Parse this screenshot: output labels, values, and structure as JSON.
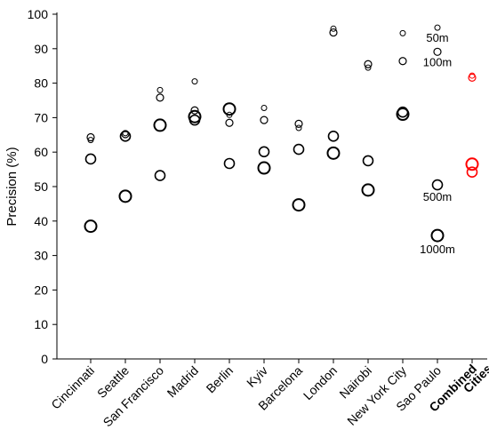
{
  "chart_data": {
    "type": "scatter",
    "title": "",
    "xlabel": "",
    "ylabel": "Precision (%)",
    "ylim": [
      0,
      100
    ],
    "yticks": [
      0,
      10,
      20,
      30,
      40,
      50,
      60,
      70,
      80,
      90,
      100
    ],
    "grid": false,
    "legend": "none",
    "categories": [
      "Cincinnati",
      "Seattle",
      "San Francisco",
      "Madrid",
      "Berlin",
      "Kyiv",
      "Barcelona",
      "London",
      "Nairobi",
      "New York City",
      "Sao Paulo",
      "Combined Cities"
    ],
    "highlighted_category": "Combined Cities",
    "series": [
      {
        "marker_size": "small",
        "values": [
          63.5,
          65.5,
          78,
          80.5,
          70.8,
          72.8,
          67,
          95.8,
          84.5,
          94.5,
          96.1,
          82.2
        ]
      },
      {
        "marker_size": "medium",
        "values": [
          64.3,
          65.2,
          75.8,
          72.1,
          68.5,
          69.3,
          68.2,
          94.7,
          85.5,
          86.4,
          89.1,
          81.6
        ]
      },
      {
        "marker_size": "large",
        "values": [
          58,
          64.6,
          53.2,
          69.3,
          56.7,
          60.1,
          60.8,
          64.6,
          57.5,
          71.6,
          50.5,
          54.2
        ]
      },
      {
        "marker_size": "x-large",
        "values": [
          38.5,
          47.2,
          67.8,
          70.3,
          72.5,
          55.4,
          44.7,
          59.7,
          49,
          71,
          35.8,
          56.5
        ]
      }
    ],
    "annotations": [
      "50m",
      "100m",
      "500m",
      "1000m"
    ],
    "colors": {
      "default": "#000000",
      "highlight": "#ff0000"
    }
  }
}
